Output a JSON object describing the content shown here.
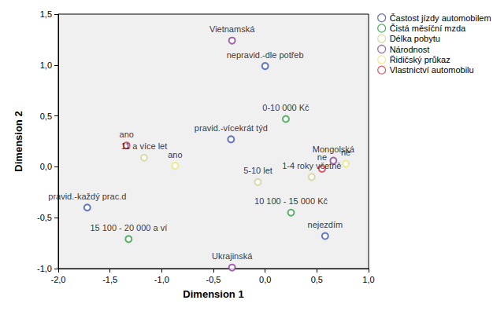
{
  "chart_data": {
    "type": "scatter",
    "x_label": "Dimension 1",
    "y_label": "Dimension 2",
    "xlim": [
      -2.0,
      1.0
    ],
    "ylim": [
      -1.0,
      1.5
    ],
    "xticks": [
      {
        "value": -2.0,
        "label": "-2,0"
      },
      {
        "value": -1.5,
        "label": "-1,5"
      },
      {
        "value": -1.0,
        "label": "-1,0"
      },
      {
        "value": -0.5,
        "label": "-0,5"
      },
      {
        "value": 0.0,
        "label": "0,0"
      },
      {
        "value": 0.5,
        "label": "0,5"
      },
      {
        "value": 1.0,
        "label": "1,0"
      }
    ],
    "yticks": [
      {
        "value": -1.0,
        "label": "-1,0"
      },
      {
        "value": -0.5,
        "label": "-0,5"
      },
      {
        "value": 0.0,
        "label": "0,0"
      },
      {
        "value": 0.5,
        "label": "0,5"
      },
      {
        "value": 1.0,
        "label": "1,0"
      },
      {
        "value": 1.5,
        "label": "1,5"
      }
    ],
    "grid": false,
    "legend": "top-right",
    "marker": "open_circle",
    "data_labels": true,
    "series": [
      {
        "name": "Častost jízdy automobilem",
        "color": "#3e58ac",
        "labels": [
          "nepravid.-dle potřeb",
          "pravid.-vícekrát týd",
          "pravid.-každý prac.d",
          "nejezdím"
        ],
        "x": [
          0.0,
          -0.33,
          -1.72,
          0.58
        ],
        "y": [
          0.99,
          0.27,
          -0.4,
          -0.68
        ]
      },
      {
        "name": "Čistá měsíční mzda",
        "color": "#2ea043",
        "labels": [
          "0-10 000 Kč",
          "10 100 - 15 000 Kč",
          "15 100 - 20 000 a ví"
        ],
        "x": [
          0.2,
          0.25,
          -1.32
        ],
        "y": [
          0.47,
          -0.45,
          -0.71
        ]
      },
      {
        "name": "Délka pobytu",
        "color": "#d2d29a",
        "labels": [
          "11 a více let",
          "5-10 let",
          "1-4 roky včetně"
        ],
        "x": [
          -1.17,
          -0.07,
          0.45
        ],
        "y": [
          0.09,
          -0.15,
          -0.1
        ]
      },
      {
        "name": "Národnost",
        "color": "#8b3f98",
        "labels": [
          "Vietnamská",
          "Mongolská",
          "Ukrajinská"
        ],
        "x": [
          -0.32,
          0.66,
          -0.32
        ],
        "y": [
          1.24,
          0.06,
          -0.99
        ]
      },
      {
        "name": "Řidičský průkaz",
        "color": "#e8e87a",
        "labels": [
          "ano",
          "ne"
        ],
        "x": [
          -0.87,
          0.78
        ],
        "y": [
          0.01,
          0.03
        ]
      },
      {
        "name": "Vlastnictví automobilu",
        "color": "#d9344a",
        "labels": [
          "ano",
          "ne"
        ],
        "x": [
          -1.34,
          0.55
        ],
        "y": [
          0.21,
          -0.02
        ]
      }
    ]
  }
}
